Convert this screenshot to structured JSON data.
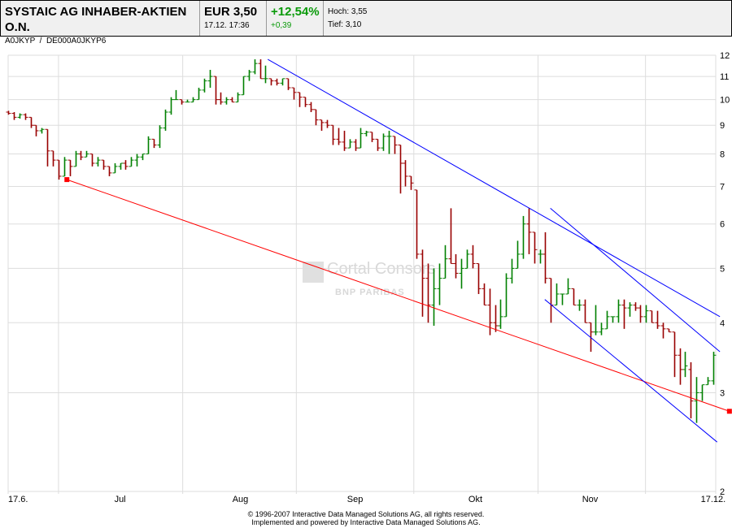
{
  "header": {
    "name": "SYSTAIC AG INHABER-AKTIEN O.N.",
    "ids": "A0JKYP  /  DE000A0JKYP6",
    "price": "EUR 3,50",
    "datetime": "17.12. 17:36",
    "change_pct": "+12,54%",
    "change_abs": "+0,39",
    "high": "Hoch: 3,55",
    "low": "Tief: 3,10"
  },
  "watermark": {
    "brand": "Cortal Consors",
    "sub": "BNP PARIBAS"
  },
  "footer": {
    "line1": "© 1996-2007 Interactive Data Managed Solutions AG, all rights reserved.",
    "line2": "Implemented and powered by Interactive Data Managed Solutions AG."
  },
  "colors": {
    "up": "#008000",
    "down": "#990000",
    "trend_resistance": "#0000ff",
    "trend_support": "#ff0000",
    "grid": "#dddddd"
  },
  "chart_data": {
    "type": "ohlc",
    "yscale": "log",
    "ylim": [
      2,
      12
    ],
    "yticks": [
      2,
      3,
      4,
      5,
      6,
      7,
      8,
      9,
      10,
      11,
      12
    ],
    "grid": true,
    "xticks": [
      {
        "label": "17.6.",
        "index": 0
      },
      {
        "label": "Jul",
        "index": 20
      },
      {
        "label": "Aug",
        "index": 41.5
      },
      {
        "label": "Sep",
        "index": 62
      },
      {
        "label": "Okt",
        "index": 83.5
      },
      {
        "label": "Nov",
        "index": 104
      },
      {
        "label": "17.12.",
        "index": 126
      }
    ],
    "month_starts": [
      9.5,
      31.7,
      52,
      73,
      95.2,
      114.4
    ],
    "bars": [
      [
        9.5,
        9.55,
        9.4,
        9.45
      ],
      [
        9.45,
        9.5,
        9.2,
        9.3
      ],
      [
        9.3,
        9.45,
        9.25,
        9.4
      ],
      [
        9.4,
        9.45,
        9.2,
        9.3
      ],
      [
        9.3,
        9.3,
        8.9,
        9.0
      ],
      [
        9.0,
        9.0,
        8.6,
        8.8
      ],
      [
        8.8,
        8.9,
        8.7,
        8.85
      ],
      [
        8.85,
        8.85,
        7.6,
        8.1
      ],
      [
        8.1,
        8.1,
        7.6,
        7.8
      ],
      [
        7.8,
        7.8,
        7.2,
        7.3
      ],
      [
        7.3,
        7.9,
        7.3,
        7.8
      ],
      [
        7.8,
        7.8,
        7.3,
        7.6
      ],
      [
        7.6,
        8.1,
        7.6,
        8.0
      ],
      [
        8.0,
        8.1,
        7.8,
        7.9
      ],
      [
        7.9,
        8.1,
        7.9,
        8.0
      ],
      [
        8.0,
        8.0,
        7.6,
        7.7
      ],
      [
        7.7,
        7.9,
        7.6,
        7.8
      ],
      [
        7.8,
        7.8,
        7.5,
        7.6
      ],
      [
        7.6,
        7.6,
        7.3,
        7.4
      ],
      [
        7.4,
        7.7,
        7.4,
        7.6
      ],
      [
        7.6,
        7.7,
        7.5,
        7.7
      ],
      [
        7.7,
        7.8,
        7.5,
        7.6
      ],
      [
        7.6,
        7.9,
        7.6,
        7.8
      ],
      [
        7.8,
        8.0,
        7.6,
        7.9
      ],
      [
        7.9,
        8.0,
        7.8,
        8.0
      ],
      [
        8.0,
        8.6,
        8.0,
        8.5
      ],
      [
        8.5,
        8.5,
        8.2,
        8.3
      ],
      [
        8.3,
        9.0,
        8.2,
        8.9
      ],
      [
        8.9,
        9.6,
        8.8,
        9.5
      ],
      [
        9.5,
        10.1,
        9.4,
        10.0
      ],
      [
        10.0,
        10.4,
        10.0,
        10.0
      ],
      [
        10.0,
        10.0,
        9.8,
        9.9
      ],
      [
        9.9,
        10.0,
        9.9,
        9.9
      ],
      [
        9.9,
        10.1,
        9.9,
        10.0
      ],
      [
        10.0,
        10.5,
        10.0,
        10.4
      ],
      [
        10.4,
        10.9,
        10.3,
        10.8
      ],
      [
        10.8,
        11.3,
        10.5,
        11.0
      ],
      [
        11.0,
        11.0,
        9.8,
        10.0
      ],
      [
        10.0,
        10.3,
        9.8,
        9.9
      ],
      [
        9.9,
        10.1,
        9.8,
        10.0
      ],
      [
        10.0,
        10.1,
        9.9,
        9.9
      ],
      [
        9.9,
        10.3,
        9.9,
        10.2
      ],
      [
        10.2,
        11.0,
        10.2,
        11.0
      ],
      [
        11.0,
        11.3,
        10.8,
        11.2
      ],
      [
        11.2,
        11.8,
        11.1,
        11.6
      ],
      [
        11.6,
        11.8,
        10.9,
        10.9
      ],
      [
        10.9,
        11.5,
        10.7,
        10.9
      ],
      [
        10.9,
        10.9,
        10.6,
        10.8
      ],
      [
        10.8,
        10.9,
        10.6,
        10.7
      ],
      [
        10.7,
        10.9,
        10.6,
        10.9
      ],
      [
        10.9,
        10.9,
        10.4,
        10.5
      ],
      [
        10.5,
        10.5,
        10.0,
        10.3
      ],
      [
        10.3,
        10.3,
        9.7,
        10.1
      ],
      [
        10.1,
        10.1,
        9.7,
        9.8
      ],
      [
        9.8,
        9.9,
        9.5,
        9.6
      ],
      [
        9.6,
        9.6,
        9.0,
        9.2
      ],
      [
        9.2,
        9.2,
        8.8,
        9.1
      ],
      [
        9.1,
        9.2,
        8.9,
        9.0
      ],
      [
        9.0,
        9.0,
        8.3,
        8.5
      ],
      [
        8.5,
        8.9,
        8.3,
        8.4
      ],
      [
        8.4,
        8.8,
        8.1,
        8.2
      ],
      [
        8.2,
        8.5,
        8.2,
        8.4
      ],
      [
        8.4,
        8.5,
        8.1,
        8.2
      ],
      [
        8.2,
        8.9,
        8.2,
        8.7
      ],
      [
        8.7,
        8.8,
        8.6,
        8.75
      ],
      [
        8.75,
        8.75,
        8.4,
        8.5
      ],
      [
        8.5,
        8.5,
        8.1,
        8.2
      ],
      [
        8.2,
        8.7,
        8.1,
        8.6
      ],
      [
        8.6,
        8.8,
        8.0,
        8.6
      ],
      [
        8.6,
        8.6,
        8.0,
        8.3
      ],
      [
        8.3,
        8.3,
        6.8,
        7.7
      ],
      [
        7.7,
        7.8,
        7.0,
        7.3
      ],
      [
        7.3,
        7.3,
        6.9,
        7.1
      ],
      [
        6.9,
        6.9,
        5.2,
        5.3
      ],
      [
        5.3,
        5.4,
        4.1,
        4.8
      ],
      [
        4.8,
        5.1,
        4.0,
        4.3
      ],
      [
        4.3,
        5.0,
        3.95,
        4.6
      ],
      [
        4.6,
        5.1,
        4.3,
        4.8
      ],
      [
        4.8,
        5.5,
        4.8,
        5.2
      ],
      [
        5.2,
        6.4,
        5.1,
        5.1
      ],
      [
        5.1,
        5.3,
        4.8,
        4.9
      ],
      [
        4.9,
        5.2,
        4.6,
        5.0
      ],
      [
        5.0,
        5.4,
        5.0,
        5.3
      ],
      [
        5.3,
        5.5,
        5.0,
        5.1
      ],
      [
        5.1,
        5.1,
        4.5,
        4.6
      ],
      [
        4.6,
        4.7,
        4.3,
        4.3
      ],
      [
        4.3,
        4.6,
        3.8,
        4.0
      ],
      [
        4.0,
        4.3,
        3.85,
        3.95
      ],
      [
        3.95,
        4.4,
        3.9,
        4.1
      ],
      [
        4.1,
        4.9,
        4.1,
        4.8
      ],
      [
        4.8,
        5.2,
        4.7,
        5.0
      ],
      [
        5.0,
        5.6,
        5.0,
        5.3
      ],
      [
        5.3,
        6.2,
        5.2,
        6.0
      ],
      [
        6.0,
        6.4,
        5.3,
        5.8
      ],
      [
        5.8,
        5.8,
        5.1,
        5.4
      ],
      [
        5.3,
        5.4,
        5.1,
        5.3
      ],
      [
        5.3,
        5.8,
        4.7,
        4.8
      ],
      [
        4.8,
        4.8,
        4.0,
        4.3
      ],
      [
        4.3,
        4.7,
        4.3,
        4.5
      ],
      [
        4.5,
        4.5,
        4.3,
        4.5
      ],
      [
        4.5,
        4.8,
        4.5,
        4.6
      ],
      [
        4.6,
        4.6,
        4.3,
        4.3
      ],
      [
        4.3,
        4.4,
        4.2,
        4.3
      ],
      [
        4.3,
        4.4,
        4.0,
        4.0
      ],
      [
        4.0,
        4.0,
        3.55,
        3.85
      ],
      [
        3.85,
        4.3,
        3.8,
        3.85
      ],
      [
        3.85,
        4.0,
        3.8,
        3.9
      ],
      [
        3.9,
        4.2,
        3.9,
        4.1
      ],
      [
        4.1,
        4.1,
        4.0,
        4.1
      ],
      [
        4.1,
        4.4,
        4.0,
        4.3
      ],
      [
        4.3,
        4.4,
        3.9,
        4.25
      ],
      [
        4.25,
        4.35,
        4.1,
        4.3
      ],
      [
        4.3,
        4.35,
        4.2,
        4.25
      ],
      [
        4.25,
        4.3,
        4.0,
        4.1
      ],
      [
        4.1,
        4.3,
        4.0,
        4.2
      ],
      [
        4.2,
        4.2,
        4.0,
        4.0
      ],
      [
        4.0,
        4.2,
        3.9,
        3.95
      ],
      [
        3.95,
        4.0,
        3.75,
        3.9
      ],
      [
        3.9,
        3.9,
        3.85,
        3.85
      ],
      [
        3.85,
        3.85,
        3.2,
        3.5
      ],
      [
        3.5,
        3.6,
        3.1,
        3.3
      ],
      [
        3.3,
        3.55,
        3.2,
        3.35
      ],
      [
        3.3,
        3.4,
        2.7,
        2.9
      ],
      [
        2.9,
        3.2,
        2.65,
        3.0
      ],
      [
        3.0,
        3.1,
        2.9,
        3.1
      ],
      [
        3.1,
        3.2,
        3.1,
        3.15
      ],
      [
        3.15,
        3.55,
        3.1,
        3.5
      ]
    ],
    "trendlines": [
      {
        "kind": "support",
        "color": "#ff0000",
        "from": [
          10.5,
          7.2
        ],
        "to": [
          128.9,
          2.78
        ],
        "markers": true
      },
      {
        "kind": "resistance",
        "color": "#0000ff",
        "from": [
          46.4,
          11.8
        ],
        "to": [
          127.2,
          4.1
        ]
      },
      {
        "kind": "resistance",
        "color": "#0000ff",
        "from": [
          96.9,
          6.4
        ],
        "to": [
          127.2,
          3.55
        ]
      },
      {
        "kind": "channel",
        "color": "#0000ff",
        "from": [
          95.9,
          4.4
        ],
        "to": [
          126.7,
          2.45
        ]
      }
    ]
  }
}
